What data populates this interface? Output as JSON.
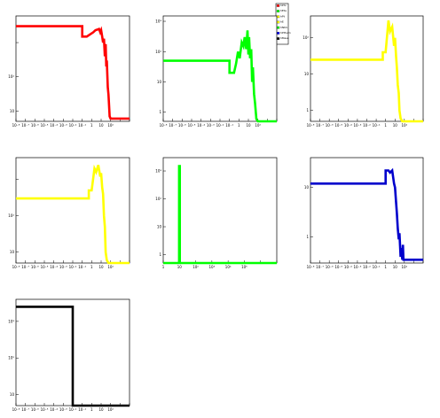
{
  "legend": {
    "entries": [
      {
        "label": "hPhi",
        "color": "#ff0000"
      },
      {
        "label": "hEta",
        "color": "#00ff00"
      },
      {
        "label": "hPt",
        "color": "#ffff00"
      },
      {
        "label": "hE",
        "color": "#ffff00"
      },
      {
        "label": "hNtrk",
        "color": "#00ff00"
      },
      {
        "label": "hPtSum",
        "color": "#0000ff"
      },
      {
        "label": "hMass",
        "color": "#000000"
      }
    ]
  },
  "chart_data": [
    {
      "type": "line",
      "color": "#ff0000",
      "xscale": "log",
      "yscale": "log",
      "xlim": [
        1e-09,
        1000
      ],
      "ylim": [
        0.5,
        600
      ],
      "xtick_labels": [
        "10⁻⁸",
        "10⁻⁷",
        "10⁻⁶",
        "10⁻⁵",
        "10⁻⁴",
        "10⁻³",
        "10⁻²",
        "10⁻¹",
        "1",
        "10",
        "10²"
      ],
      "ytick_labels": [
        "10",
        "10²"
      ],
      "x": [
        1e-09,
        0.01,
        0.01,
        0.03,
        0.06,
        0.15,
        0.25,
        0.4,
        0.6,
        0.8,
        1.0,
        1.3,
        1.6,
        2.0,
        2.5,
        3.0,
        3.5,
        4.0,
        5.0,
        6.0,
        8.0,
        10,
        20,
        1000
      ],
      "y": [
        300,
        300,
        150,
        150,
        170,
        200,
        230,
        240,
        250,
        200,
        230,
        150,
        100,
        130,
        40,
        90,
        20,
        30,
        5,
        3,
        0.7,
        0.6,
        0.6,
        0.6
      ]
    },
    {
      "type": "line",
      "color": "#00ff00",
      "xscale": "log",
      "yscale": "log",
      "xlim": [
        1e-09,
        1000
      ],
      "ylim": [
        0.5,
        1500
      ],
      "xtick_labels": [
        "10⁻⁸",
        "10⁻⁷",
        "10⁻⁶",
        "10⁻⁵",
        "10⁻⁴",
        "10⁻³",
        "10⁻²",
        "10⁻¹",
        "1",
        "10",
        "10²"
      ],
      "ytick_labels": [
        "1",
        "10",
        "10²",
        "10³"
      ],
      "x": [
        1e-09,
        0.01,
        0.01,
        0.03,
        0.05,
        0.08,
        0.12,
        0.2,
        0.3,
        0.4,
        0.6,
        0.8,
        1.0,
        1.2,
        1.5,
        2.0,
        2.5,
        3.0,
        4.0,
        5.0,
        7.0,
        10,
        20,
        1000
      ],
      "y": [
        50,
        50,
        20,
        20,
        40,
        100,
        60,
        200,
        150,
        300,
        120,
        500,
        80,
        300,
        60,
        120,
        10,
        30,
        4,
        2,
        0.6,
        0.5,
        0.5,
        0.5
      ]
    },
    {
      "type": "line",
      "color": "#ffff00",
      "xscale": "log",
      "yscale": "log",
      "xlim": [
        1e-09,
        1000
      ],
      "ylim": [
        0.5,
        400
      ],
      "xtick_labels": [
        "10⁻⁸",
        "10⁻⁷",
        "10⁻⁶",
        "10⁻⁵",
        "10⁻⁴",
        "10⁻³",
        "10⁻²",
        "10⁻¹",
        "1",
        "10",
        "10²"
      ],
      "ytick_labels": [
        "1",
        "10",
        "10²"
      ],
      "x": [
        1e-09,
        0.05,
        0.05,
        0.1,
        0.2,
        0.3,
        0.5,
        0.8,
        1.0,
        1.3,
        1.6,
        2.0,
        2.5,
        3.0,
        4.0,
        6.0,
        10,
        1000
      ],
      "y": [
        25,
        25,
        40,
        40,
        300,
        150,
        200,
        60,
        100,
        30,
        15,
        5,
        3,
        1,
        0.6,
        0.5,
        0.5,
        0.5
      ]
    },
    {
      "type": "line",
      "color": "#ffff00",
      "xscale": "log",
      "yscale": "log",
      "xlim": [
        1e-09,
        1000
      ],
      "ylim": [
        0.5,
        400
      ],
      "xtick_labels": [
        "10⁻⁸",
        "10⁻⁷",
        "10⁻⁶",
        "10⁻⁵",
        "10⁻⁴",
        "10⁻³",
        "10⁻²",
        "10⁻¹",
        "1",
        "10",
        "10²"
      ],
      "ytick_labels": [
        "10",
        "10²"
      ],
      "x": [
        1e-09,
        0.05,
        0.05,
        0.1,
        0.2,
        0.3,
        0.5,
        0.8,
        1.0,
        1.3,
        1.6,
        2.0,
        2.5,
        3.0,
        4.0,
        6.0,
        10,
        1000
      ],
      "y": [
        30,
        30,
        50,
        50,
        200,
        160,
        250,
        120,
        150,
        60,
        40,
        10,
        5,
        1,
        0.6,
        0.5,
        0.5,
        0.5
      ]
    },
    {
      "type": "line",
      "color": "#00ff00",
      "xscale": "log",
      "yscale": "log",
      "xlim": [
        0.1,
        1000000
      ],
      "ylim": [
        0.5,
        3000
      ],
      "xtick_labels": [
        "1",
        "10",
        "10²",
        "10³",
        "10⁴",
        "10⁵"
      ],
      "ytick_labels": [
        "1",
        "10",
        "10²",
        "10³"
      ],
      "x": [
        0.1,
        0.95,
        0.95,
        1.05,
        1.05,
        1000000
      ],
      "y": [
        0.5,
        0.5,
        1500,
        1500,
        0.5,
        0.5
      ]
    },
    {
      "type": "line",
      "color": "#0000cc",
      "xscale": "log",
      "yscale": "log",
      "xlim": [
        1e-09,
        1000
      ],
      "ylim": [
        0.3,
        40
      ],
      "xtick_labels": [
        "10⁻⁸",
        "10⁻⁷",
        "10⁻⁶",
        "10⁻⁵",
        "10⁻⁴",
        "10⁻³",
        "10⁻²",
        "10⁻¹",
        "1",
        "10",
        "10²"
      ],
      "ytick_labels": [
        "1",
        "10"
      ],
      "x": [
        1e-09,
        0.1,
        0.1,
        0.2,
        0.3,
        0.5,
        0.8,
        1.0,
        1.3,
        1.6,
        2.0,
        2.5,
        3.0,
        4.0,
        5.0,
        6.0,
        7.0,
        8.0,
        10,
        20,
        1000
      ],
      "y": [
        12,
        12,
        22,
        22,
        20,
        22,
        12,
        10,
        5,
        3,
        1.5,
        0.9,
        1.2,
        0.4,
        0.6,
        0.35,
        0.7,
        0.35,
        0.35,
        0.35,
        0.35
      ]
    },
    {
      "type": "line",
      "color": "#000000",
      "xscale": "log",
      "yscale": "log",
      "xlim": [
        1e-09,
        1000
      ],
      "ylim": [
        0.5,
        400
      ],
      "xtick_labels": [
        "10⁻⁸",
        "10⁻⁷",
        "10⁻⁶",
        "10⁻⁵",
        "10⁻⁴",
        "10⁻³",
        "10⁻²",
        "10⁻¹",
        "1",
        "10",
        "10²"
      ],
      "ytick_labels": [
        "10",
        "10²",
        "10³"
      ],
      "x": [
        1e-09,
        0.001,
        0.001,
        1000
      ],
      "y": [
        250,
        250,
        0.5,
        0.5
      ]
    }
  ]
}
